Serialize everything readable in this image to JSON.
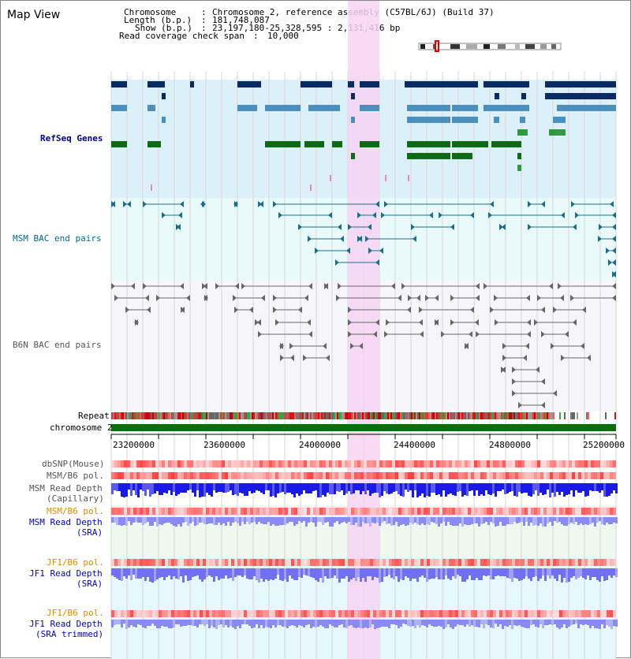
{
  "title": "Map View",
  "header": {
    "chromosome_label": "Chromosome",
    "chromosome_value": "Chromosome 2, reference assembly (C57BL/6J) (Build 37)",
    "length_label": "Length (b.p.)",
    "length_value": "181,748,087",
    "show_label": "Show (b.p.)",
    "show_value": "23,197,180-25,328,595 : 2,131,416 bp",
    "coverage_label": "Read coverage check span",
    "coverage_value": "10,000"
  },
  "tracks": {
    "refseq": "RefSeq Genes",
    "msm_bac": "MSM BAC end pairs",
    "b6n_bac": "B6N BAC end pairs",
    "repeat": "Repeat",
    "chrom": "chromosome 2",
    "dbsnp": "dbSNP(Mouse)",
    "msm_b6_pol": "MSM/B6 pol.",
    "msm_read_cap_1": "MSM Read Depth",
    "msm_read_cap_2": "(Capillary)",
    "msm_b6_pol2": "MSM/B6 pol.",
    "msm_read_sra_1": "MSM Read Depth",
    "msm_read_sra_2": "(SRA)",
    "jf1_b6_pol": "JF1/B6 pol.",
    "jf1_read_sra_1": "JF1 Read Depth",
    "jf1_read_sra_2": "(SRA)",
    "jf1_b6_pol2": "JF1/B6 pol.",
    "jf1_read_trim_1": "JF1 Read Depth",
    "jf1_read_trim_2": "(SRA trimmed)"
  },
  "axis": {
    "ticks": [
      "23200000",
      "23600000",
      "24000000",
      "24400000",
      "24800000",
      "25200000"
    ]
  },
  "colors": {
    "refseq_label": "#00008b",
    "msm_bac_label": "#006b8a",
    "b6n_label": "#555555",
    "orange_label": "#e08a00",
    "blue_label": "#0000cc",
    "highlight": "#f7d3f3"
  }
}
